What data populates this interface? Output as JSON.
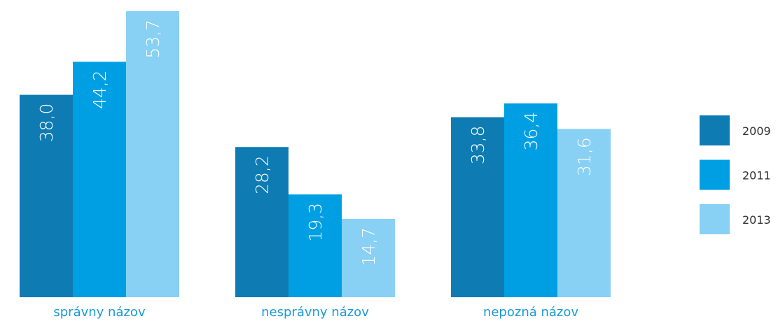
{
  "chart_data": {
    "type": "bar",
    "categories": [
      "správny názov",
      "nesprávny názov",
      "nepozná názov"
    ],
    "series": [
      {
        "name": "2009",
        "color": "#0e7bb3",
        "values": [
          38.0,
          28.2,
          33.8
        ],
        "value_labels": [
          "38,0",
          "28,2",
          "33,8"
        ]
      },
      {
        "name": "2011",
        "color": "#009fe3",
        "values": [
          44.2,
          19.3,
          36.4
        ],
        "value_labels": [
          "44,2",
          "19,3",
          "36,4"
        ]
      },
      {
        "name": "2013",
        "color": "#88d0f4",
        "values": [
          53.7,
          14.7,
          31.6
        ],
        "value_labels": [
          "53,7",
          "14,7",
          "31,6"
        ]
      }
    ],
    "legend": "right"
  }
}
